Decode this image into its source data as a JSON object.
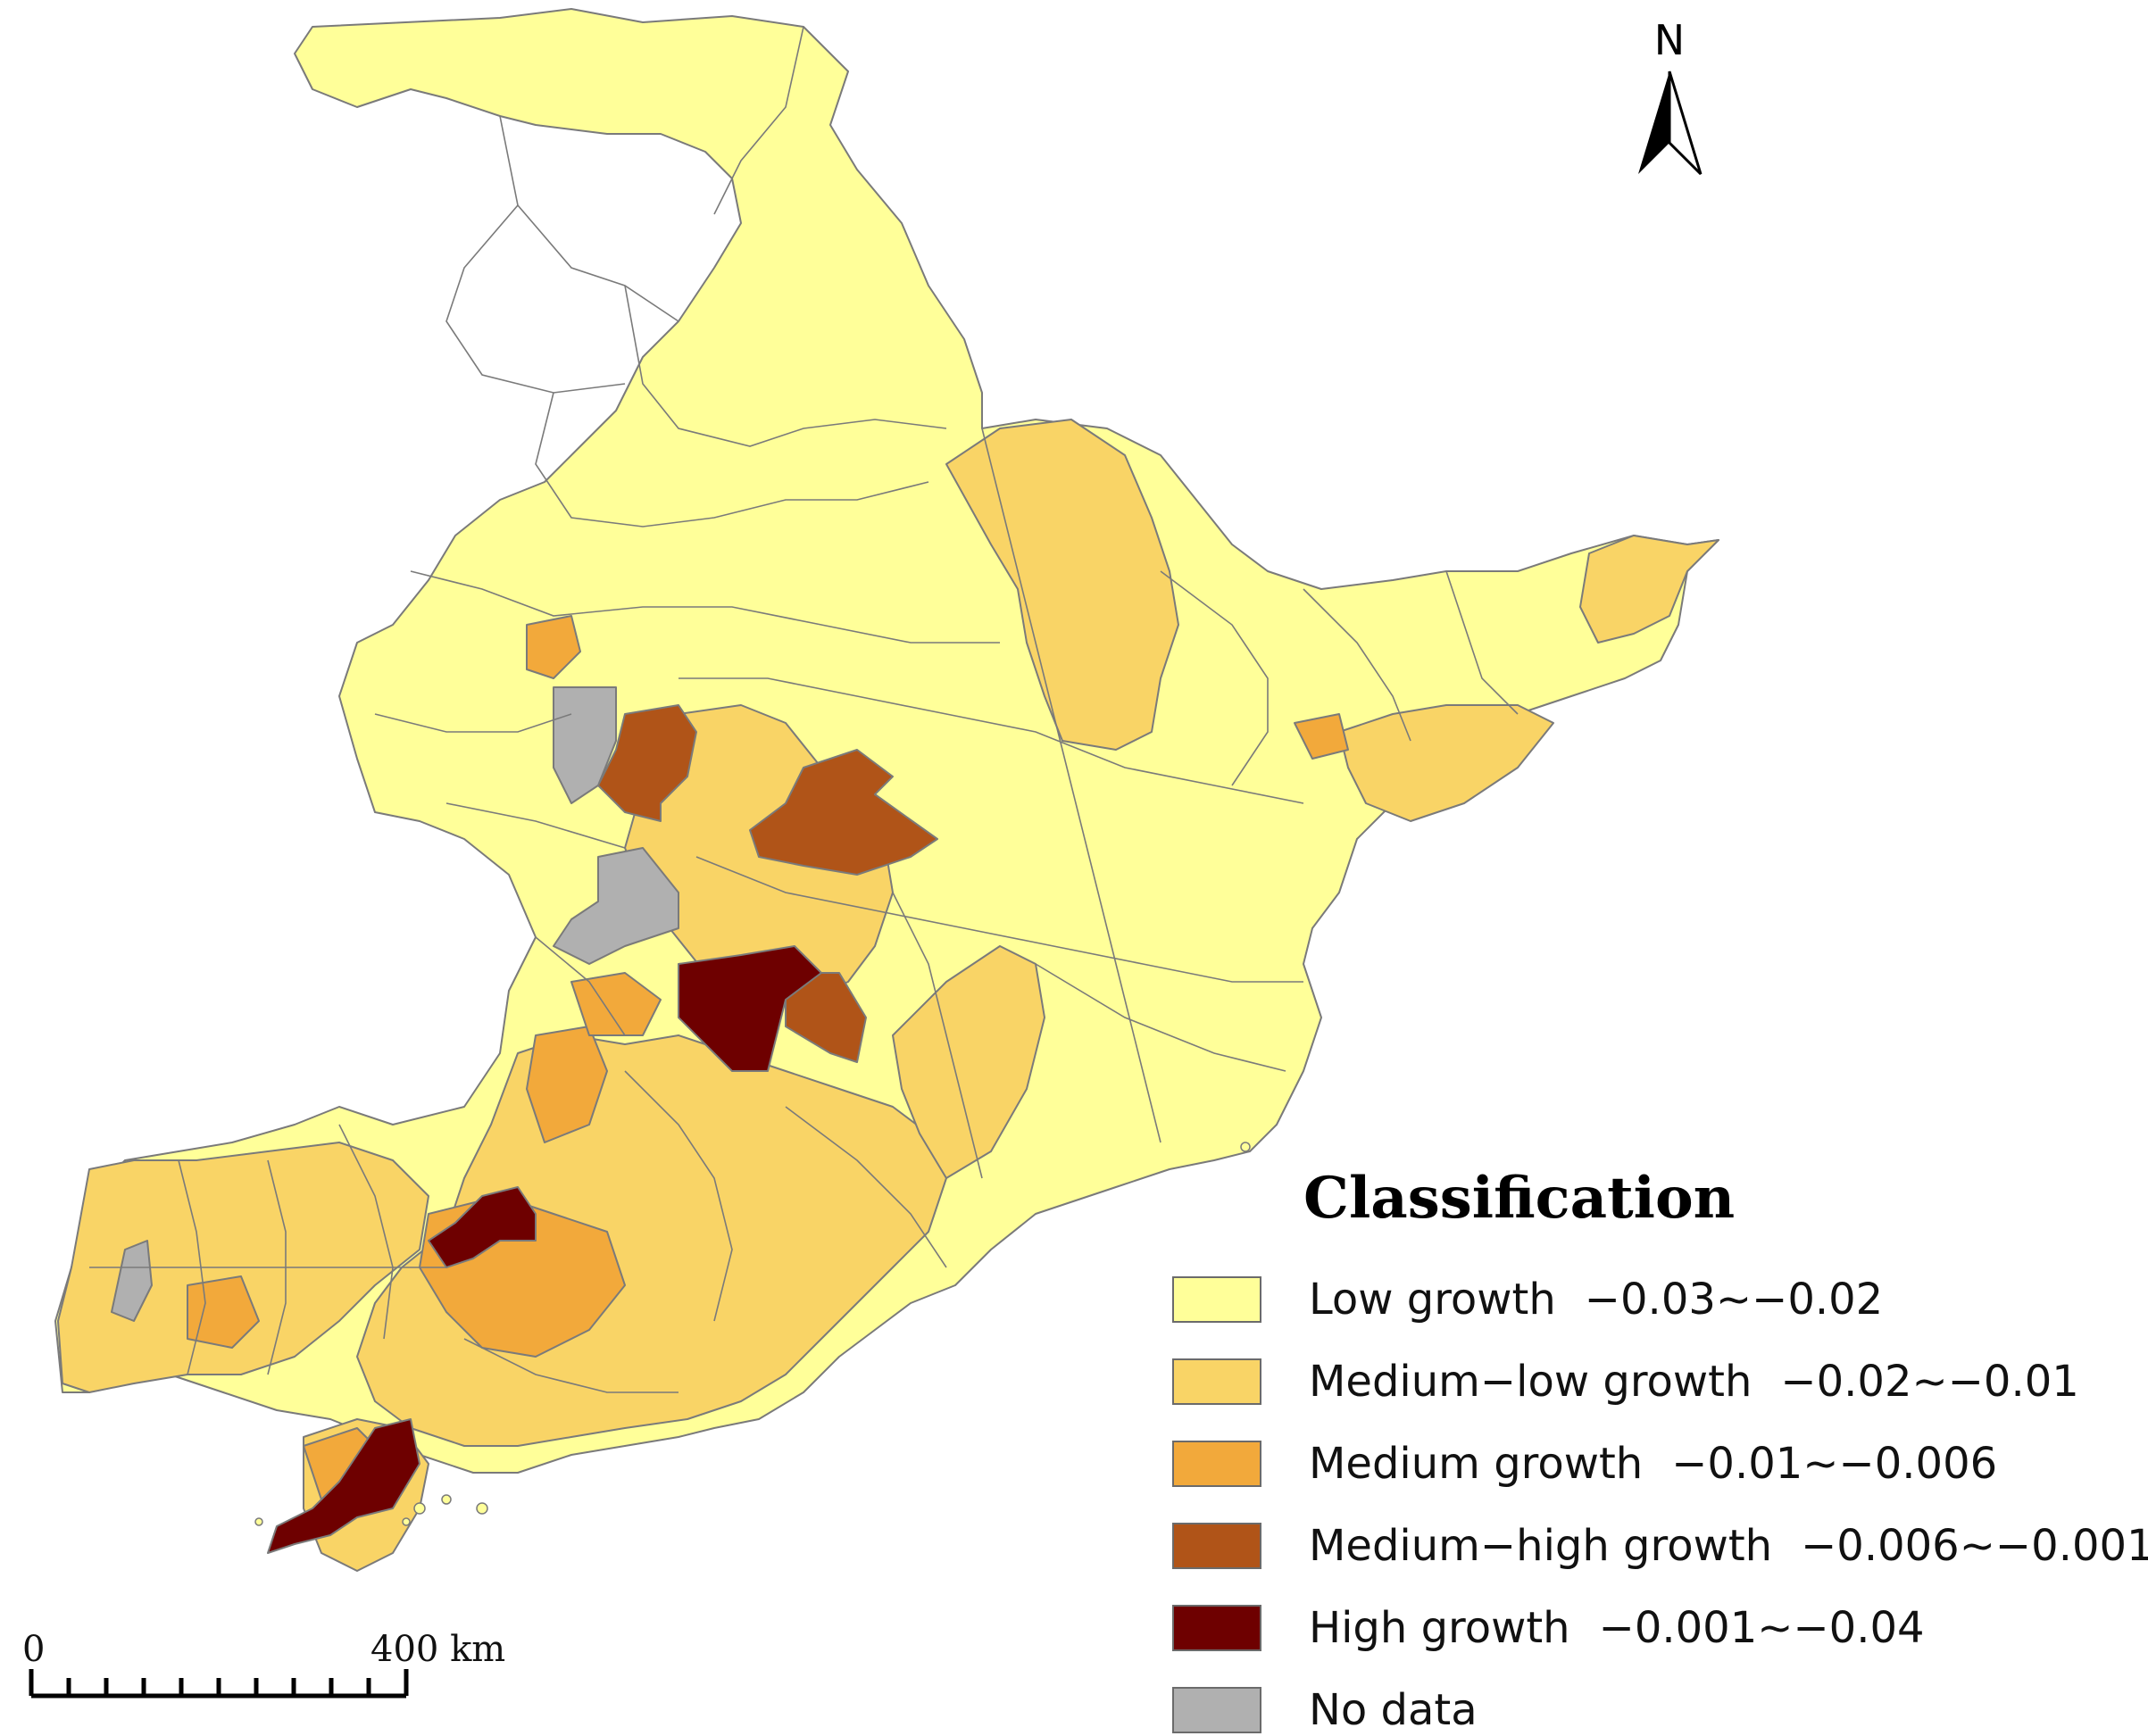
{
  "north_arrow": {
    "label": "N"
  },
  "scale_bar": {
    "start_label": "0",
    "end_label": "400 km",
    "divisions": 10
  },
  "legend": {
    "title": "Classification",
    "items": [
      {
        "key": "low",
        "label": "Low growth",
        "range": "−0.03~−0.02",
        "color": "#ffff99"
      },
      {
        "key": "medium-low",
        "label": "Medium−low growth",
        "range": "−0.02~−0.01",
        "color": "#f9d466"
      },
      {
        "key": "medium",
        "label": "Medium growth",
        "range": "−0.01~−0.006",
        "color": "#f2a93b"
      },
      {
        "key": "medium-high",
        "label": "Medium−high growth",
        "range": "−0.006~−0.001",
        "color": "#b05418"
      },
      {
        "key": "high",
        "label": "High growth",
        "range": "−0.001~−0.04",
        "color": "#6e0000"
      },
      {
        "key": "no-data",
        "label": "No data",
        "range": "",
        "color": "#b0b0b0"
      }
    ]
  },
  "map": {
    "border_color": "#7a7a7a",
    "background": "#ffffff"
  }
}
